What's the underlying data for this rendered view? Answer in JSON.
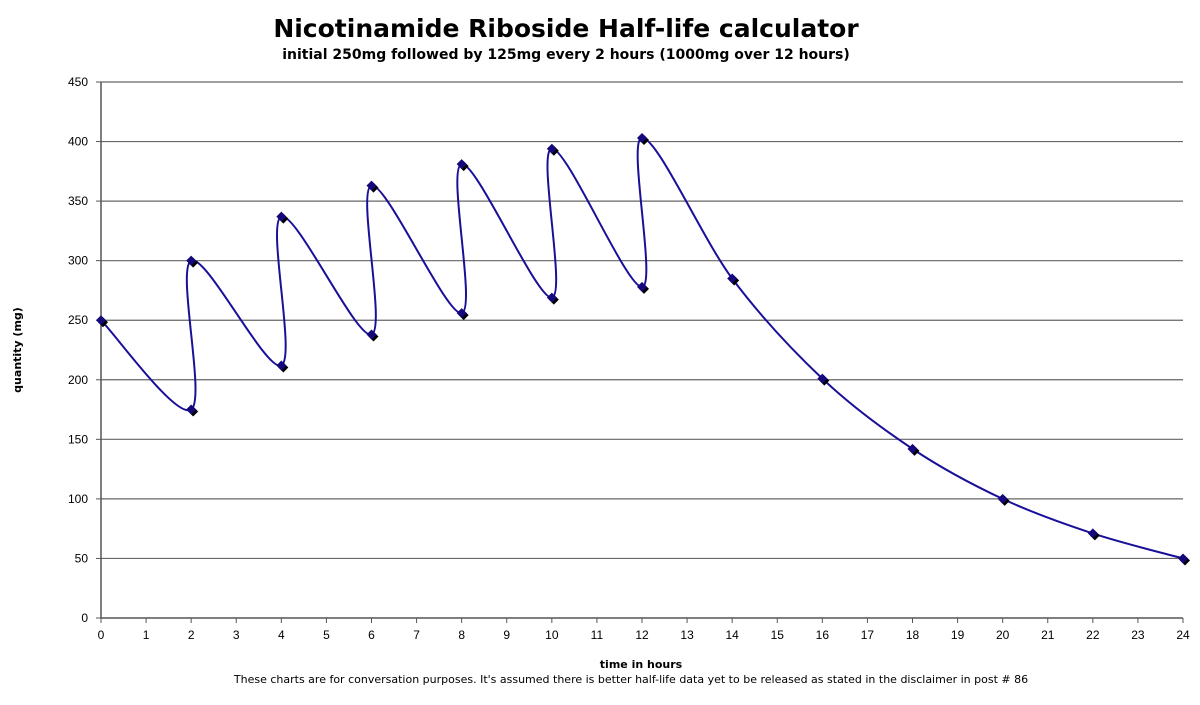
{
  "chart_data": {
    "type": "line",
    "title": "Nicotinamide Riboside Half-life calculator",
    "subtitle": "initial 250mg followed by 125mg every 2 hours (1000mg over 12 hours)",
    "xlabel": "time in hours",
    "ylabel": "quantity (mg)",
    "xlim": [
      0,
      24
    ],
    "ylim": [
      0,
      450
    ],
    "xticks": [
      0,
      1,
      2,
      3,
      4,
      5,
      6,
      7,
      8,
      9,
      10,
      11,
      12,
      13,
      14,
      15,
      16,
      17,
      18,
      19,
      20,
      21,
      22,
      23,
      24
    ],
    "yticks": [
      0,
      50,
      100,
      150,
      200,
      250,
      300,
      350,
      400,
      450
    ],
    "grid": "horizontal",
    "smooth": true,
    "series": [
      {
        "name": "quantity",
        "color": "#1a0f99",
        "x": [
          0,
          2,
          2,
          4,
          4,
          6,
          6,
          8,
          8,
          10,
          10,
          12,
          12,
          14,
          16,
          18,
          20,
          22,
          24
        ],
        "y": [
          250,
          175,
          300,
          212,
          337,
          238,
          363,
          256,
          381,
          269,
          394,
          278,
          403,
          285,
          201,
          142,
          100,
          71,
          50
        ]
      }
    ],
    "footnote": "These charts are for conversation purposes. It's assumed there is better half-life data yet to be released as stated in the disclaimer in post # 86"
  }
}
